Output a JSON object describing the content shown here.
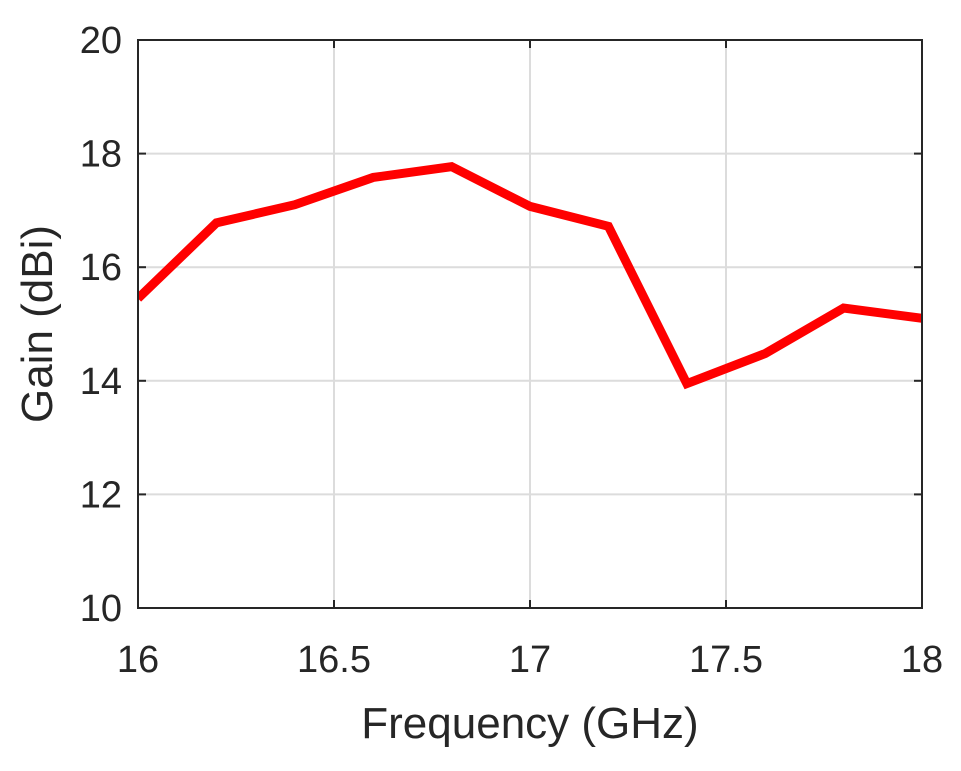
{
  "chart_data": {
    "type": "line",
    "xlabel": "Frequency (GHz)",
    "ylabel": "Gain (dBi)",
    "xlim": [
      16,
      18
    ],
    "ylim": [
      10,
      20
    ],
    "x_ticks": [
      16,
      16.5,
      17,
      17.5,
      18
    ],
    "x_tick_labels": [
      "16",
      "16.5",
      "17",
      "17.5",
      "18"
    ],
    "y_ticks": [
      10,
      12,
      14,
      16,
      18,
      20
    ],
    "y_tick_labels": [
      "10",
      "12",
      "14",
      "16",
      "18",
      "20"
    ],
    "grid": true,
    "series": [
      {
        "color": "#ff0000",
        "x": [
          16.0,
          16.2,
          16.4,
          16.6,
          16.8,
          17.0,
          17.2,
          17.4,
          17.6,
          17.8,
          18.0
        ],
        "y": [
          15.45,
          16.78,
          17.1,
          17.58,
          17.77,
          17.07,
          16.72,
          13.95,
          14.48,
          15.28,
          15.1
        ]
      }
    ]
  }
}
